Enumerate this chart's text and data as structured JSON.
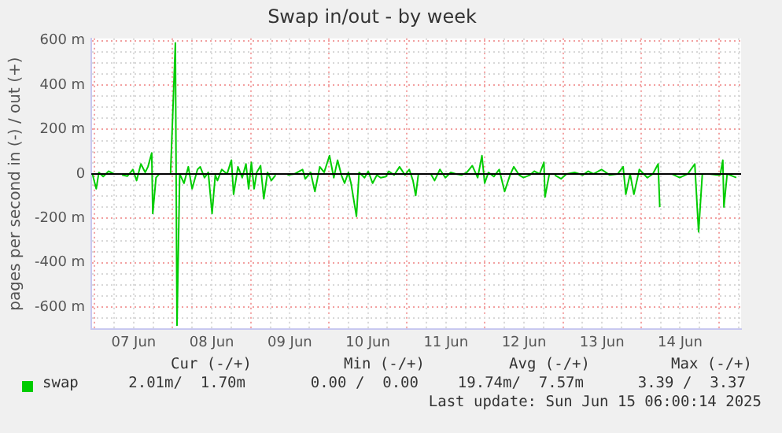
{
  "chart_data": {
    "type": "line",
    "title": "Swap in/out - by week",
    "ylabel": "pages per second in (-) / out (+)",
    "xlim": [
      "2025-06-06T23:00",
      "2025-06-15T06:45"
    ],
    "xticks": [
      {
        "value": "2025-06-07T00:00",
        "label": null
      },
      {
        "value": "2025-06-07T06:00",
        "label": null
      },
      {
        "value": "2025-06-07T12:00",
        "label": "07 Jun"
      },
      {
        "value": "2025-06-07T18:00",
        "label": null
      },
      {
        "value": "2025-06-08T00:00",
        "label": null
      },
      {
        "value": "2025-06-08T06:00",
        "label": null
      },
      {
        "value": "2025-06-08T12:00",
        "label": "08 Jun"
      },
      {
        "value": "2025-06-08T18:00",
        "label": null
      },
      {
        "value": "2025-06-09T00:00",
        "label": null
      },
      {
        "value": "2025-06-09T06:00",
        "label": null
      },
      {
        "value": "2025-06-09T12:00",
        "label": "09 Jun"
      },
      {
        "value": "2025-06-09T18:00",
        "label": null
      },
      {
        "value": "2025-06-10T00:00",
        "label": null
      },
      {
        "value": "2025-06-10T06:00",
        "label": null
      },
      {
        "value": "2025-06-10T12:00",
        "label": "10 Jun"
      },
      {
        "value": "2025-06-10T18:00",
        "label": null
      },
      {
        "value": "2025-06-11T00:00",
        "label": null
      },
      {
        "value": "2025-06-11T06:00",
        "label": null
      },
      {
        "value": "2025-06-11T12:00",
        "label": "11 Jun"
      },
      {
        "value": "2025-06-11T18:00",
        "label": null
      },
      {
        "value": "2025-06-12T00:00",
        "label": null
      },
      {
        "value": "2025-06-12T06:00",
        "label": null
      },
      {
        "value": "2025-06-12T12:00",
        "label": "12 Jun"
      },
      {
        "value": "2025-06-12T18:00",
        "label": null
      },
      {
        "value": "2025-06-13T00:00",
        "label": null
      },
      {
        "value": "2025-06-13T06:00",
        "label": null
      },
      {
        "value": "2025-06-13T12:00",
        "label": "13 Jun"
      },
      {
        "value": "2025-06-13T18:00",
        "label": null
      },
      {
        "value": "2025-06-14T00:00",
        "label": null
      },
      {
        "value": "2025-06-14T06:00",
        "label": null
      },
      {
        "value": "2025-06-14T12:00",
        "label": "14 Jun"
      },
      {
        "value": "2025-06-14T18:00",
        "label": null
      },
      {
        "value": "2025-06-15T00:00",
        "label": null
      },
      {
        "value": "2025-06-15T06:00",
        "label": null
      }
    ],
    "ylim": [
      -700,
      610
    ],
    "yticks": [
      {
        "value": -650,
        "label": null
      },
      {
        "value": -600,
        "label": "-600 m"
      },
      {
        "value": -550,
        "label": null
      },
      {
        "value": -500,
        "label": null
      },
      {
        "value": -450,
        "label": null
      },
      {
        "value": -400,
        "label": "-400 m"
      },
      {
        "value": -350,
        "label": null
      },
      {
        "value": -300,
        "label": null
      },
      {
        "value": -250,
        "label": null
      },
      {
        "value": -200,
        "label": "-200 m"
      },
      {
        "value": -150,
        "label": null
      },
      {
        "value": -100,
        "label": null
      },
      {
        "value": -50,
        "label": null
      },
      {
        "value": 0,
        "label": "0"
      },
      {
        "value": 50,
        "label": null
      },
      {
        "value": 100,
        "label": null
      },
      {
        "value": 150,
        "label": null
      },
      {
        "value": 200,
        "label": "200 m"
      },
      {
        "value": 250,
        "label": null
      },
      {
        "value": 300,
        "label": null
      },
      {
        "value": 350,
        "label": null
      },
      {
        "value": 400,
        "label": "400 m"
      },
      {
        "value": 450,
        "label": null
      },
      {
        "value": 500,
        "label": null
      },
      {
        "value": 550,
        "label": null
      },
      {
        "value": 600,
        "label": "600 m"
      }
    ],
    "grid": true,
    "legend": "bottom",
    "marker": "none",
    "line_style": "solid",
    "ref_lines": [
      {
        "axis": "y",
        "value": 0,
        "color": "#000000"
      }
    ],
    "annotations": [
      "Cur (-/+)",
      "Min (-/+)",
      "Avg (-/+)",
      "Max (-/+)",
      "2.01m/  1.70m",
      "0.00 /  0.00",
      "19.74m/  7.57m",
      "3.39 /  3.37",
      "Last update: Sun Jun 15 06:00:14 2025"
    ],
    "x": [
      "2025-06-06T23:20",
      "2025-06-07T00:30",
      "2025-06-07T01:19",
      "2025-06-07T02:39",
      "2025-06-07T04:18",
      "2025-06-07T05:58",
      "2025-06-07T07:07",
      "2025-06-07T08:27",
      "2025-06-07T10:06",
      "2025-06-07T11:46",
      "2025-06-07T12:55",
      "2025-06-07T14:14",
      "2025-06-07T15:34",
      "2025-06-07T16:24",
      "2025-06-07T17:34",
      "2025-06-07T17:53",
      "2025-06-07T18:53",
      "2025-06-07T20:02",
      "2025-06-07T21:42",
      "2025-06-07T23:21",
      "2025-06-08T00:50",
      "2025-06-08T01:20",
      "2025-06-08T02:10",
      "2025-06-08T03:29",
      "2025-06-08T04:49",
      "2025-06-08T05:59",
      "2025-06-08T07:38",
      "2025-06-08T08:28",
      "2025-06-08T09:47",
      "2025-06-08T10:57",
      "2025-06-08T12:07",
      "2025-06-08T13:06",
      "2025-06-08T13:46",
      "2025-06-08T15:05",
      "2025-06-08T16:44",
      "2025-06-08T18:04",
      "2025-06-08T18:44",
      "2025-06-08T20:04",
      "2025-06-08T21:23",
      "2025-06-08T22:32",
      "2025-06-08T23:22",
      "2025-06-09T00:12",
      "2025-06-09T01:02",
      "2025-06-09T01:51",
      "2025-06-09T03:01",
      "2025-06-09T04:01",
      "2025-06-09T05:10",
      "2025-06-09T06:20",
      "2025-06-09T07:39",
      "2025-06-09T09:28",
      "2025-06-09T11:17",
      "2025-06-09T13:27",
      "2025-06-09T15:56",
      "2025-06-09T16:46",
      "2025-06-09T18:25",
      "2025-06-09T19:44",
      "2025-06-09T21:14",
      "2025-06-09T22:34",
      "2025-06-10T00:13",
      "2025-06-10T01:32",
      "2025-06-10T02:42",
      "2025-06-10T03:52",
      "2025-06-10T04:51",
      "2025-06-10T06:01",
      "2025-06-10T06:50",
      "2025-06-10T08:30",
      "2025-06-10T09:19",
      "2025-06-10T10:59",
      "2025-06-10T12:08",
      "2025-06-10T13:28",
      "2025-06-10T14:47",
      "2025-06-10T15:57",
      "2025-06-10T17:36",
      "2025-06-10T18:26",
      "2025-06-10T20:06",
      "2025-06-10T21:45",
      "2025-06-10T23:25",
      "2025-06-11T00:44",
      "2025-06-11T01:53",
      "2025-06-11T02:43",
      "2025-06-11T03:33",
      "2025-06-11T05:22",
      "2025-06-11T07:22",
      "2025-06-11T08:31",
      "2025-06-11T10:10",
      "2025-06-11T11:50",
      "2025-06-11T13:29",
      "2025-06-11T15:08",
      "2025-06-11T16:48",
      "2025-06-11T18:28",
      "2025-06-11T20:07",
      "2025-06-11T21:46",
      "2025-06-11T23:05",
      "2025-06-11T23:55",
      "2025-06-12T01:05",
      "2025-06-12T02:44",
      "2025-06-12T04:23",
      "2025-06-12T06:03",
      "2025-06-12T07:43",
      "2025-06-12T08:52",
      "2025-06-12T10:31",
      "2025-06-12T11:51",
      "2025-06-12T13:50",
      "2025-06-12T15:10",
      "2025-06-12T16:49",
      "2025-06-12T18:08",
      "2025-06-12T18:28",
      "2025-06-12T19:48",
      "2025-06-12T20:38",
      "2025-06-12T21:27",
      "2025-06-12T23:26",
      "2025-06-13T01:06",
      "2025-06-13T03:35",
      "2025-06-13T06:04",
      "2025-06-13T07:43",
      "2025-06-13T09:23",
      "2025-06-13T11:52",
      "2025-06-13T14:21",
      "2025-06-13T16:50",
      "2025-06-13T18:29",
      "2025-06-13T19:19",
      "2025-06-13T20:38",
      "2025-06-13T21:48",
      "2025-06-13T23:28",
      "2025-06-14T01:56",
      "2025-06-14T03:36",
      "2025-06-14T05:15",
      "2025-06-14T05:45",
      "2025-06-14T07:34",
      "2025-06-14T09:24",
      "2025-06-14T11:53",
      "2025-06-14T14:22",
      "2025-06-14T16:31",
      "2025-06-14T17:41",
      "2025-06-14T18:50",
      "2025-06-14T20:59",
      "2025-06-14T23:29",
      "2025-06-15T00:19",
      "2025-06-15T01:08",
      "2025-06-15T01:28",
      "2025-06-15T02:28",
      "2025-06-15T05:17"
    ],
    "series": [
      {
        "name": "swap",
        "color": "#00cc00",
        "values": [
          0,
          -67,
          7,
          -12,
          12,
          0,
          null,
          -5,
          -10,
          20,
          -30,
          45,
          7,
          32,
          94,
          -178,
          -17,
          2,
          null,
          0,
          590,
          -682,
          0,
          -42,
          32,
          -67,
          20,
          32,
          -17,
          7,
          -178,
          -5,
          -30,
          20,
          0,
          62,
          -92,
          32,
          -17,
          45,
          -67,
          52,
          -67,
          7,
          37,
          -112,
          7,
          -30,
          -5,
          null,
          -5,
          0,
          20,
          -22,
          7,
          -79,
          32,
          7,
          82,
          -17,
          62,
          -5,
          -42,
          7,
          -42,
          -191,
          7,
          -17,
          12,
          -42,
          -5,
          -17,
          -12,
          12,
          -5,
          32,
          -5,
          20,
          -30,
          -97,
          0,
          null,
          0,
          -30,
          20,
          -17,
          7,
          0,
          -5,
          7,
          37,
          -17,
          82,
          -42,
          7,
          -12,
          20,
          -79,
          -5,
          32,
          -5,
          -17,
          -5,
          12,
          0,
          52,
          -104,
          0,
          null,
          -5,
          -22,
          0,
          7,
          -5,
          12,
          0,
          20,
          -5,
          0,
          32,
          -92,
          0,
          -92,
          20,
          -17,
          0,
          45,
          -149,
          null,
          0,
          -17,
          0,
          45,
          -261,
          0,
          0,
          -5,
          -5,
          62,
          -149,
          0,
          -17
        ]
      }
    ]
  }
}
